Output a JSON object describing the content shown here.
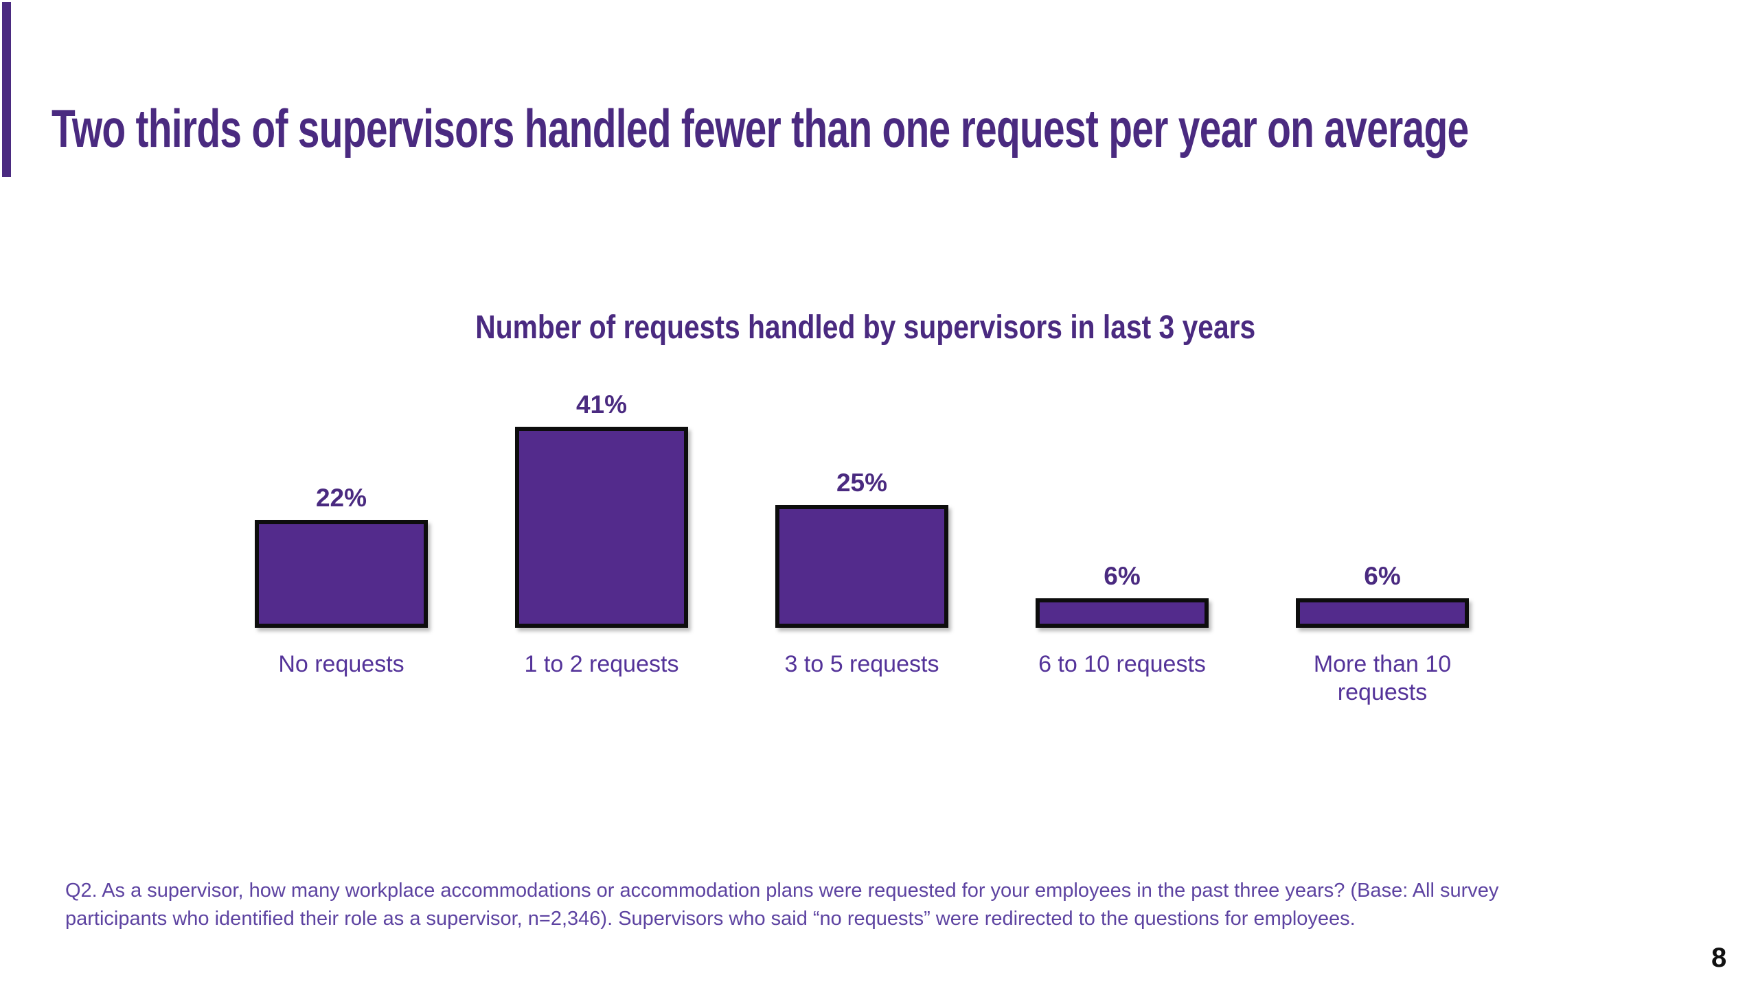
{
  "slide": {
    "title": "Two thirds of supervisors handled fewer than one request per year on average",
    "page_number": "8"
  },
  "chart_data": {
    "type": "bar",
    "title": "Number of requests handled by supervisors in last 3 years",
    "categories": [
      "No requests",
      "1 to 2 requests",
      "3 to 5 requests",
      "6 to 10 requests",
      "More than 10 requests"
    ],
    "values": [
      22,
      41,
      25,
      6,
      6
    ],
    "value_labels": [
      "22%",
      "41%",
      "25%",
      "6%",
      "6%"
    ],
    "unit": "percent",
    "series_name": "Share of supervisors",
    "legend": false,
    "grid": false,
    "axes_visible": false,
    "value_labels_position": "above-bars",
    "bar_fill": "#532b8c",
    "bar_border": "#0d0d0d"
  },
  "footnote": {
    "line1": "Q2. As a supervisor, how many workplace accommodations or accommodation plans were requested for your employees in the past three years? (Base: All survey",
    "line2": "participants who identified their role as a supervisor, n=2,346). Supervisors who said “no requests” were redirected to the questions for employees."
  },
  "colors": {
    "accent_purple": "#4a2a80",
    "bar_fill": "#532b8c",
    "bar_border": "#0d0d0d",
    "category_label": "#543399",
    "footnote_text": "#5d43a1",
    "page_number": "#111111"
  }
}
